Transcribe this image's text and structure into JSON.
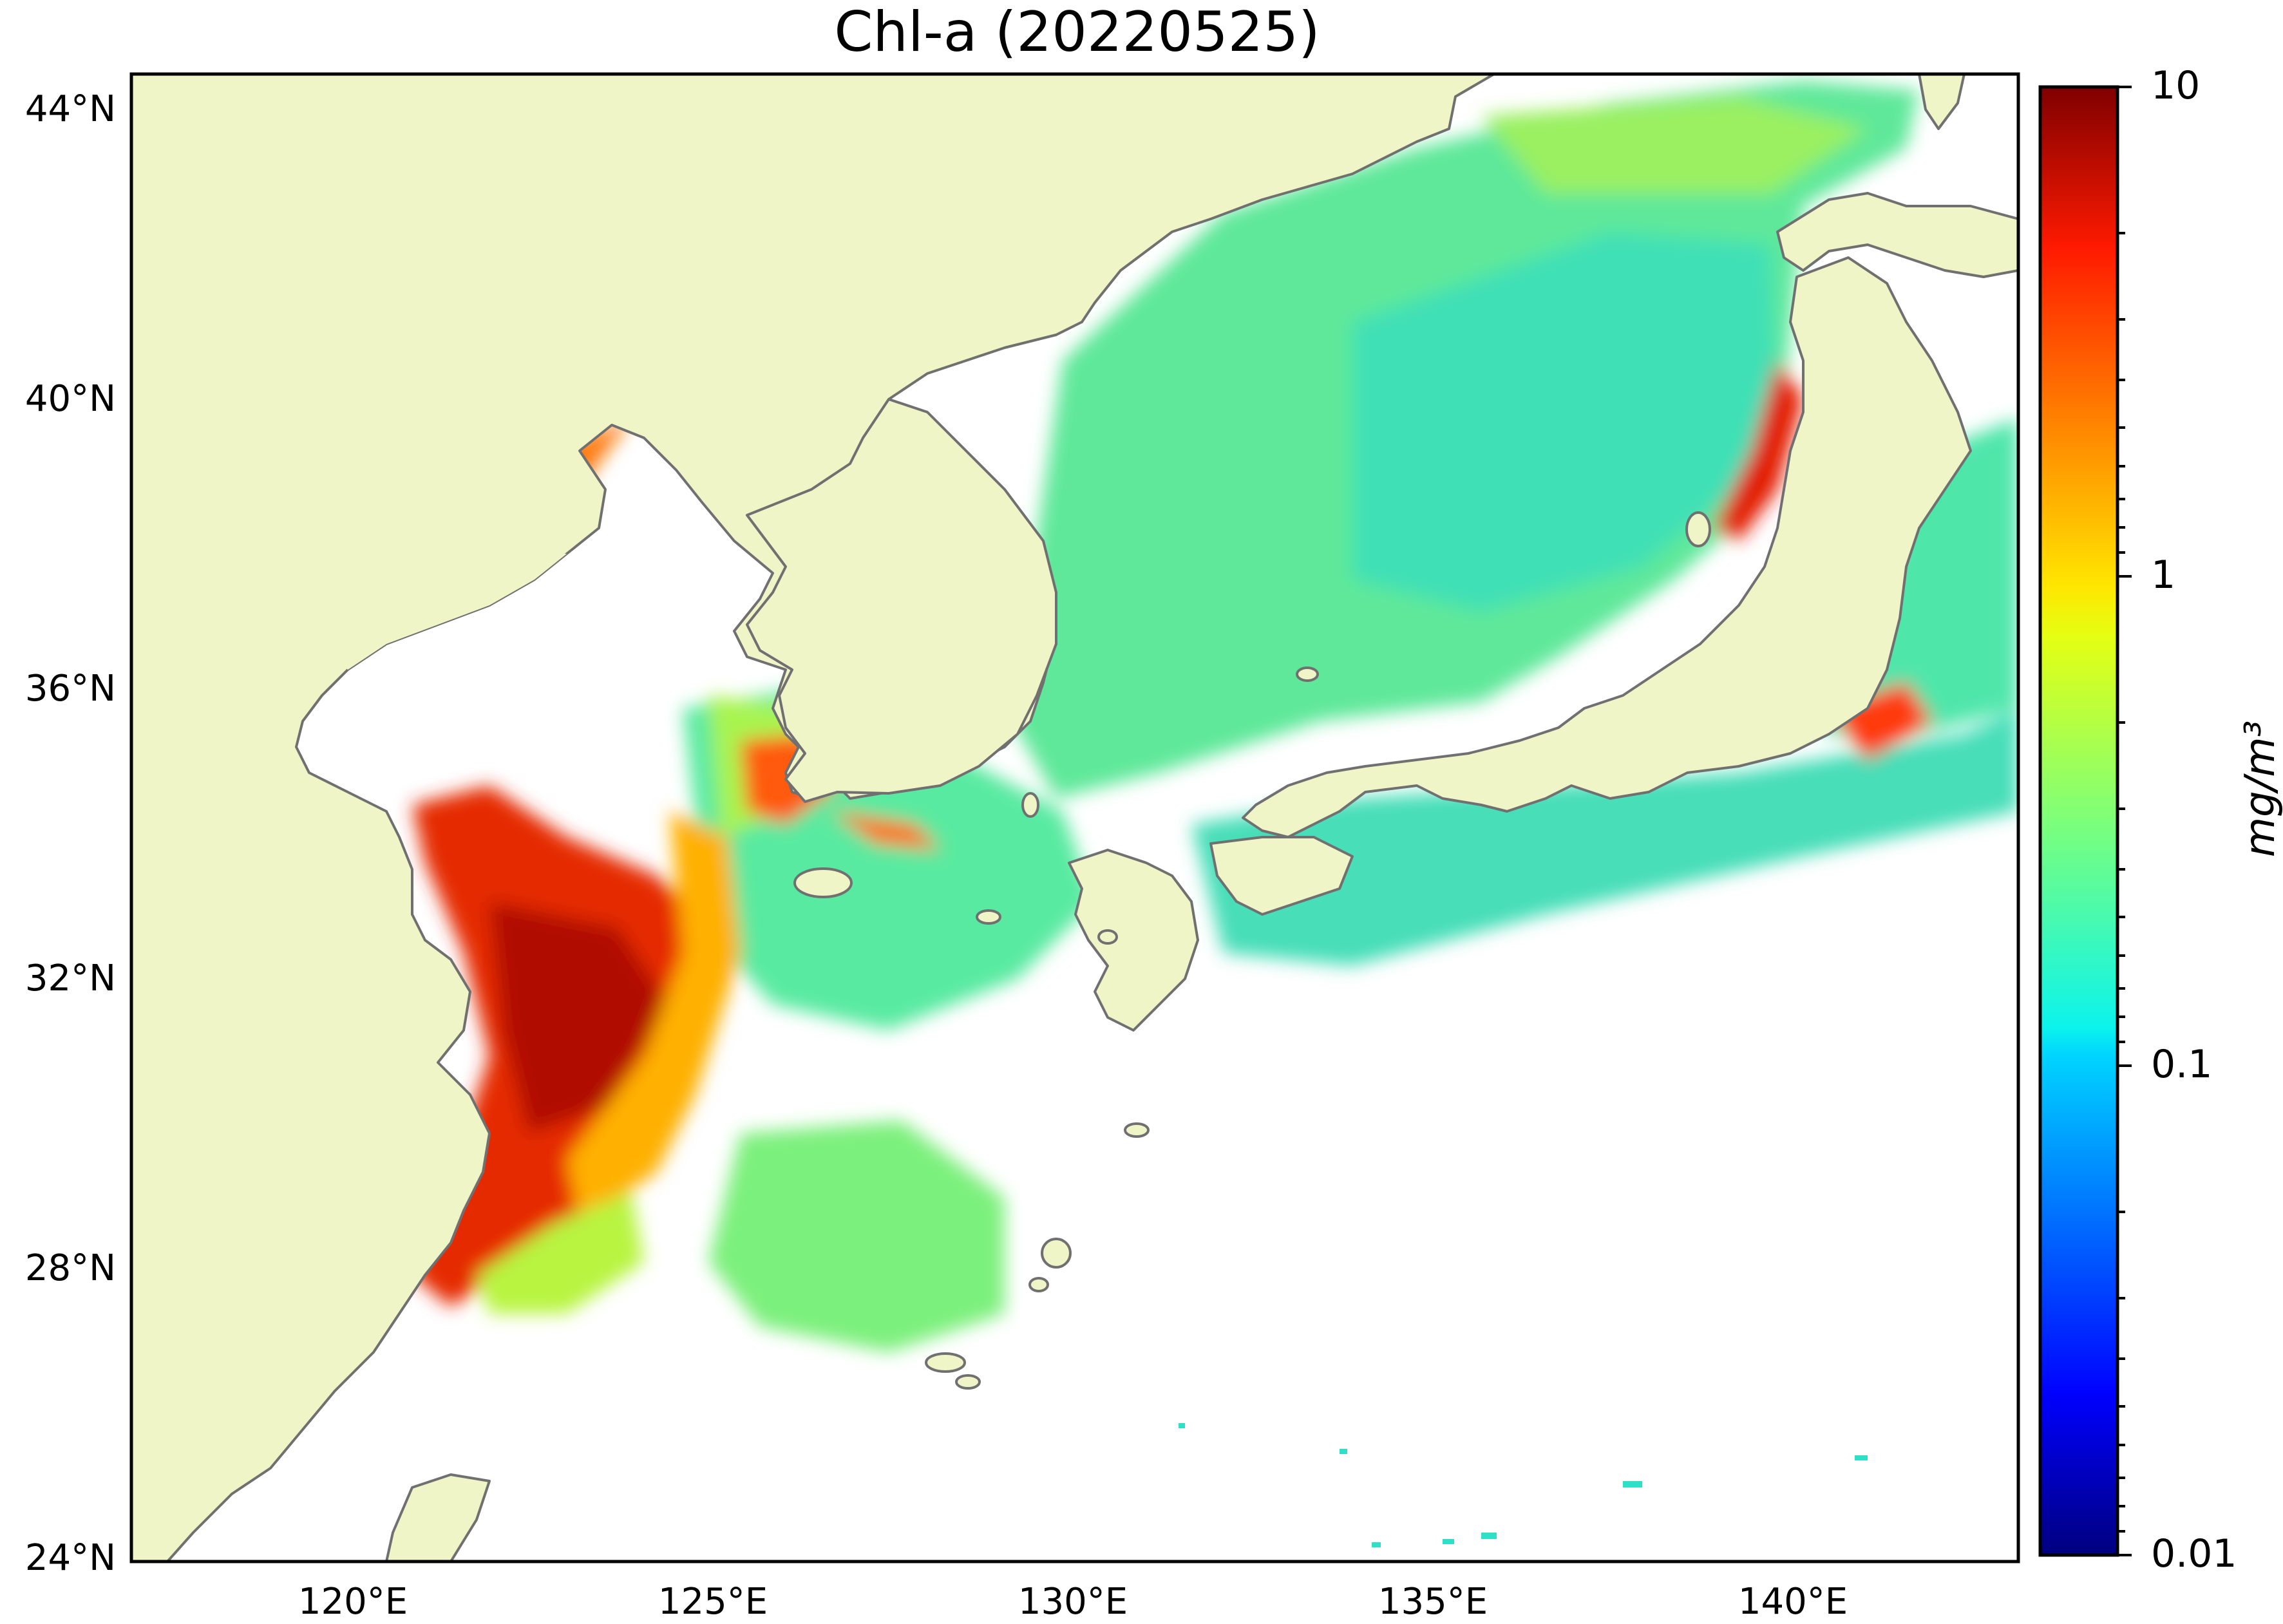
{
  "title": "Chl-a (20220525)",
  "map": {
    "lat_ticks": [
      "44°N",
      "40°N",
      "36°N",
      "32°N",
      "28°N",
      "24°N"
    ],
    "lon_ticks": [
      "120°E",
      "125°E",
      "130°E",
      "135°E",
      "140°E"
    ],
    "lat_range": [
      24,
      44.5
    ],
    "lon_range": [
      116.5,
      143
    ],
    "colors": {
      "land": "#f0f5c8",
      "coast": "#707070",
      "no_data": "#ffffff"
    }
  },
  "colorbar": {
    "label": "mg/m³",
    "scale": "log",
    "ticks": [
      "10",
      "1",
      "0.1",
      "0.01"
    ],
    "range": [
      0.01,
      10
    ],
    "colormap": "jet"
  }
}
